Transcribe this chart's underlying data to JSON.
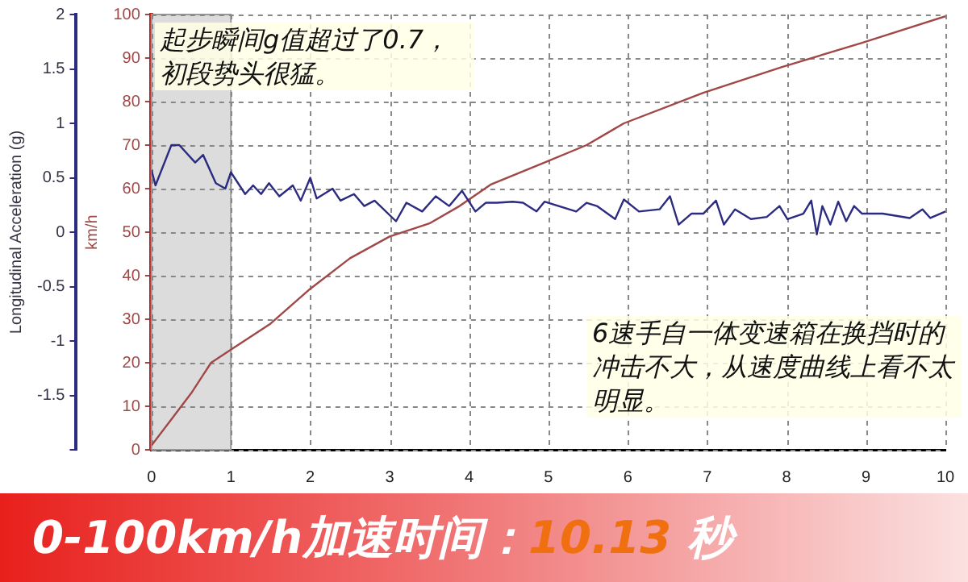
{
  "chart_data": {
    "type": "line",
    "title": "0-100km/h加速时间：10.13 秒",
    "ylabel": "Longitudinal Acceleration (g)",
    "y2label": "km/h",
    "annotations": [
      "起步瞬间g值超过了0.7，初段势头很猛。",
      "6速手自一体变速箱在换挡时的冲击不大，从速度曲线上看不太明显。"
    ],
    "xlim": [
      0,
      10
    ],
    "xticks": [
      0,
      1,
      2,
      3,
      4,
      5,
      6,
      7,
      8,
      9,
      10
    ],
    "ylim": [
      -2,
      2
    ],
    "yticks": [
      {
        "value": -2,
        "label": null
      },
      -1.5,
      -1,
      -0.5,
      0,
      0.5,
      1,
      1.5,
      2
    ],
    "y2lim": [
      0,
      100
    ],
    "y2ticks": [
      0,
      10,
      20,
      30,
      40,
      50,
      60,
      70,
      80,
      90,
      100
    ],
    "grid": true,
    "legend": false,
    "marker": "none",
    "line_style": "solid",
    "bands": [
      {
        "axis": "x",
        "from": 0,
        "to": 1,
        "color": "#dcdcdc"
      }
    ],
    "series": [
      {
        "color": "#2b2b80",
        "x": [
          0,
          0.05,
          0.25,
          0.35,
          0.55,
          0.65,
          0.81,
          0.93,
          1.0,
          1.18,
          1.28,
          1.38,
          1.48,
          1.61,
          1.78,
          1.88,
          2.0,
          2.08,
          2.28,
          2.38,
          2.55,
          2.68,
          2.81,
          3.08,
          3.21,
          3.41,
          3.58,
          3.75,
          3.91,
          4.08,
          4.21,
          4.35,
          4.55,
          4.68,
          4.85,
          4.95,
          5.35,
          5.48,
          5.61,
          5.84,
          5.95,
          6.14,
          6.4,
          6.53,
          6.64,
          6.8,
          6.95,
          7.11,
          7.21,
          7.35,
          7.55,
          7.75,
          7.91,
          8.01,
          8.21,
          8.31,
          8.38,
          8.45,
          8.55,
          8.65,
          8.75,
          8.85,
          8.95,
          9.21,
          9.55,
          9.71,
          9.81,
          10.0
        ],
        "values": [
          0.57,
          0.43,
          0.8,
          0.8,
          0.64,
          0.71,
          0.45,
          0.4,
          0.55,
          0.35,
          0.43,
          0.35,
          0.45,
          0.33,
          0.43,
          0.29,
          0.5,
          0.31,
          0.4,
          0.29,
          0.35,
          0.24,
          0.29,
          0.1,
          0.27,
          0.19,
          0.33,
          0.24,
          0.38,
          0.19,
          0.27,
          0.27,
          0.28,
          0.27,
          0.19,
          0.28,
          0.19,
          0.27,
          0.24,
          0.12,
          0.3,
          0.19,
          0.21,
          0.33,
          0.07,
          0.17,
          0.17,
          0.29,
          0.07,
          0.21,
          0.12,
          0.14,
          0.24,
          0.12,
          0.17,
          0.29,
          -0.02,
          0.24,
          0.07,
          0.28,
          0.1,
          0.24,
          0.17,
          0.17,
          0.13,
          0.21,
          0.13,
          0.19
        ]
      },
      {
        "color": "#a04848",
        "axis": "y2",
        "x": [
          0,
          0.25,
          0.5,
          0.75,
          1.0,
          1.5,
          2.0,
          2.5,
          3.0,
          3.5,
          3.88,
          4.28,
          4.95,
          5.48,
          5.95,
          6.95,
          7.95,
          8.95,
          10.0
        ],
        "values": [
          1,
          7,
          13,
          20,
          23,
          29,
          37,
          44,
          49,
          52,
          56,
          61,
          66,
          70,
          75,
          82,
          88,
          93.5,
          99.6
        ]
      }
    ]
  }
}
